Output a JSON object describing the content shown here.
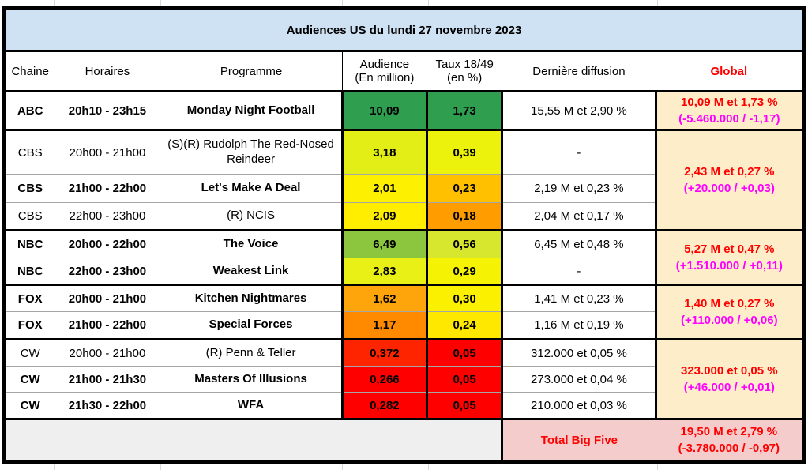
{
  "title": "Audiences US du lundi 27 novembre 2023",
  "header": {
    "chaine": "Chaine",
    "horaires": "Horaires",
    "programme": "Programme",
    "audience_line1": "Audience",
    "audience_line2": "(En million)",
    "taux_line1": "Taux 18/49",
    "taux_line2": "(en %)",
    "derniere": "Dernière diffusion",
    "global": "Global"
  },
  "rows": [
    {
      "chaine": "ABC",
      "horaires": "20h10 - 23h15",
      "programme": "Monday Night Football",
      "audience": "10,09",
      "taux": "1,73",
      "derniere": "15,55 M et 2,90 %",
      "weight": "bold",
      "audience_bg": "#2f9e4e",
      "taux_bg": "#2f9e4e"
    },
    {
      "chaine": "CBS",
      "horaires": "20h00 - 21h00",
      "programme": "(S)(R) Rudolph The Red-Nosed Reindeer",
      "audience": "3,18",
      "taux": "0,39",
      "derniere": "-",
      "weight": "normal",
      "audience_bg": "#e3ee16",
      "taux_bg": "#edf20c"
    },
    {
      "chaine": "CBS",
      "horaires": "21h00 - 22h00",
      "programme": "Let's Make A Deal",
      "audience": "2,01",
      "taux": "0,23",
      "derniere": "2,19 M et 0,23 %",
      "weight": "bold",
      "audience_bg": "#fdf000",
      "taux_bg": "#ffc000"
    },
    {
      "chaine": "CBS",
      "horaires": "22h00 - 23h00",
      "programme": "(R) NCIS",
      "audience": "2,09",
      "taux": "0,18",
      "derniere": "2,04 M et 0,17 %",
      "weight": "normal",
      "audience_bg": "#ffee00",
      "taux_bg": "#ff9d00"
    },
    {
      "chaine": "NBC",
      "horaires": "20h00 - 22h00",
      "programme": "The Voice",
      "audience": "6,49",
      "taux": "0,56",
      "derniere": "6,45 M et 0,48 %",
      "weight": "bold",
      "audience_bg": "#8cc63f",
      "taux_bg": "#d6e72e"
    },
    {
      "chaine": "NBC",
      "horaires": "22h00 - 23h00",
      "programme": "Weakest Link",
      "audience": "2,83",
      "taux": "0,29",
      "derniere": "-",
      "weight": "bold",
      "audience_bg": "#e9f015",
      "taux_bg": "#f6f203"
    },
    {
      "chaine": "FOX",
      "horaires": "20h00 - 21h00",
      "programme": "Kitchen Nightmares",
      "audience": "1,62",
      "taux": "0,30",
      "derniere": "1,41 M et 0,23 %",
      "weight": "bold",
      "audience_bg": "#ffa50c",
      "taux_bg": "#fbf000"
    },
    {
      "chaine": "FOX",
      "horaires": "21h00 - 22h00",
      "programme": "Special Forces",
      "audience": "1,17",
      "taux": "0,24",
      "derniere": "1,16 M et 0,19 %",
      "weight": "bold",
      "audience_bg": "#ff8a00",
      "taux_bg": "#ffe800"
    },
    {
      "chaine": "CW",
      "horaires": "20h00 - 21h00",
      "programme": "(R) Penn & Teller",
      "audience": "0,372",
      "taux": "0,05",
      "derniere": "312.000 et 0,05 %",
      "weight": "normal",
      "audience_bg": "#ff2400",
      "taux_bg": "#ff0000"
    },
    {
      "chaine": "CW",
      "horaires": "21h00 - 21h30",
      "programme": "Masters Of Illusions",
      "audience": "0,266",
      "taux": "0,05",
      "derniere": "273.000 et 0,04 %",
      "weight": "bold",
      "audience_bg": "#ff0000",
      "taux_bg": "#ff0000"
    },
    {
      "chaine": "CW",
      "horaires": "21h30 - 22h00",
      "programme": "WFA",
      "audience": "0,282",
      "taux": "0,05",
      "derniere": "210.000 et 0,03 %",
      "weight": "bold",
      "audience_bg": "#ff0000",
      "taux_bg": "#ff0000"
    }
  ],
  "globals": [
    {
      "main": "10,09 M et 1,73 %",
      "delta": "(-5.460.000 / -1,17)"
    },
    {
      "main": "2,43 M et 0,27 %",
      "delta": "(+20.000 / +0,03)"
    },
    {
      "main": "5,27 M et 0,47 %",
      "delta": "(+1.510.000 / +0,11)"
    },
    {
      "main": "1,40 M et 0,27 %",
      "delta": "(+110.000 / +0,06)"
    },
    {
      "main": "323.000 et 0,05 %",
      "delta": "(+46.000 / +0,01)"
    }
  ],
  "total": {
    "label": "Total Big Five",
    "main": "19,50 M et 2,79 %",
    "delta": "(-3.780.000 / -0,97)"
  },
  "colors": {
    "title_bg": "#cfe2f3",
    "global_bg": "#fdeec9",
    "global_main_text": "#ff0000",
    "global_delta_text": "#ff00ff",
    "header_global_text": "#ff0000",
    "total_bg": "#f4cccc",
    "total_text": "#ff0000",
    "total_spacer_bg": "#efefef"
  }
}
